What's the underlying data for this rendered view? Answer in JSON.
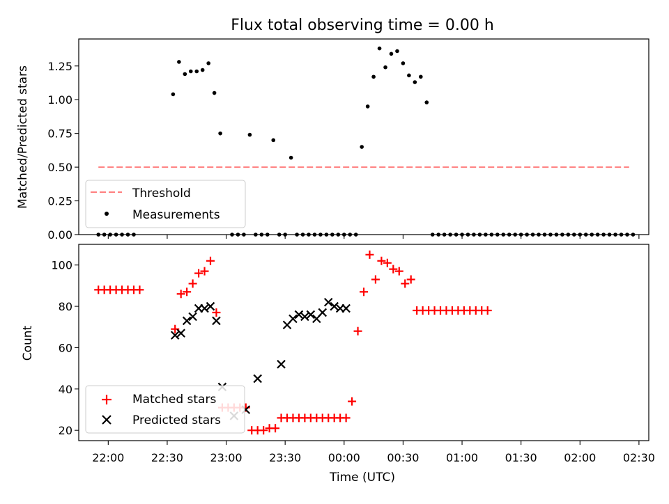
{
  "figure_title": "Flux total observing time = 0.00 h",
  "colors": {
    "threshold": "#ff7f7f",
    "measurement": "#000000",
    "matched": "#ff0000",
    "predicted": "#000000"
  },
  "chart_data": [
    {
      "type": "scatter",
      "title": "Flux total observing time = 0.00 h",
      "ylabel": "Matched/Predicted stars",
      "xlabel": "",
      "xlim": [
        "21:45",
        "02:35"
      ],
      "ylim": [
        0.0,
        1.45
      ],
      "yticks": [
        0.0,
        0.25,
        0.5,
        0.75,
        1.0,
        1.25
      ],
      "ytick_labels": [
        "0.00",
        "0.25",
        "0.50",
        "0.75",
        "1.00",
        "1.25"
      ],
      "xticks": [
        "22:00",
        "22:30",
        "23:00",
        "23:30",
        "00:00",
        "00:30",
        "01:00",
        "01:30",
        "02:00",
        "02:30"
      ],
      "legend": {
        "position": "lower-left",
        "entries": [
          "Threshold",
          "Measurements"
        ]
      },
      "threshold": {
        "name": "Threshold",
        "y": 0.5,
        "x_range": [
          "21:55",
          "02:25"
        ]
      },
      "measurements": {
        "name": "Measurements",
        "x": [
          "21:55",
          "21:58",
          "22:01",
          "22:04",
          "22:07",
          "22:10",
          "22:13",
          "22:33",
          "22:36",
          "22:39",
          "22:42",
          "22:45",
          "22:48",
          "22:51",
          "22:54",
          "22:57",
          "23:00",
          "23:03",
          "23:06",
          "23:09",
          "23:12",
          "23:15",
          "23:18",
          "23:21",
          "23:24",
          "23:27",
          "23:30",
          "23:33",
          "23:36",
          "23:39",
          "23:42",
          "23:45",
          "23:48",
          "23:51",
          "23:54",
          "23:57",
          "24:00",
          "24:03",
          "24:06",
          "24:09",
          "24:12",
          "24:15",
          "24:18",
          "24:21",
          "24:24",
          "24:27",
          "24:30",
          "24:33",
          "24:36",
          "24:39",
          "24:42",
          "24:45",
          "24:48",
          "24:51",
          "24:54",
          "24:57",
          "25:00",
          "25:03",
          "25:06",
          "25:09",
          "25:12",
          "25:15",
          "25:18",
          "25:21",
          "25:24",
          "25:27",
          "25:30",
          "25:33",
          "25:36",
          "25:39",
          "25:42",
          "25:45",
          "25:48",
          "25:51",
          "25:54",
          "25:57",
          "26:00",
          "26:03",
          "26:06",
          "26:09",
          "26:12",
          "26:15",
          "26:18",
          "26:21",
          "26:24",
          "26:27"
        ],
        "y": [
          0,
          0,
          0,
          0,
          0,
          0,
          0,
          1.04,
          1.28,
          1.19,
          1.21,
          1.21,
          1.22,
          1.27,
          1.05,
          0.75,
          null,
          0,
          0,
          0,
          0.74,
          0,
          0,
          0,
          0.7,
          0,
          0,
          0.57,
          0,
          0,
          0,
          0,
          0,
          0,
          0,
          0,
          0,
          0,
          0,
          0.65,
          0.95,
          1.17,
          1.38,
          1.24,
          1.34,
          1.36,
          1.27,
          1.18,
          1.13,
          1.17,
          0.98,
          0,
          0,
          0,
          0,
          0,
          0,
          0,
          0,
          0,
          0,
          0,
          0,
          0,
          0,
          0,
          0,
          0,
          0,
          0,
          0,
          0,
          0,
          0,
          0,
          0,
          0,
          0,
          0,
          0,
          0,
          0,
          0,
          0,
          0,
          0
        ]
      }
    },
    {
      "type": "scatter",
      "title": "",
      "ylabel": "Count",
      "xlabel": "Time (UTC)",
      "xlim": [
        "21:45",
        "02:35"
      ],
      "ylim": [
        15,
        110
      ],
      "yticks": [
        20,
        40,
        60,
        80,
        100
      ],
      "ytick_labels": [
        "20",
        "40",
        "60",
        "80",
        "100"
      ],
      "xticks": [
        "22:00",
        "22:30",
        "23:00",
        "23:30",
        "00:00",
        "00:30",
        "01:00",
        "01:30",
        "02:00",
        "02:30"
      ],
      "legend": {
        "position": "lower-left",
        "entries": [
          "Matched stars",
          "Predicted stars"
        ]
      },
      "series": [
        {
          "name": "Matched stars",
          "marker": "+",
          "points": [
            [
              "21:55",
              88
            ],
            [
              "21:58",
              88
            ],
            [
              "22:01",
              88
            ],
            [
              "22:04",
              88
            ],
            [
              "22:07",
              88
            ],
            [
              "22:10",
              88
            ],
            [
              "22:13",
              88
            ],
            [
              "22:16",
              88
            ],
            [
              "22:34",
              69
            ],
            [
              "22:37",
              86
            ],
            [
              "22:40",
              87
            ],
            [
              "22:43",
              91
            ],
            [
              "22:46",
              96
            ],
            [
              "22:49",
              97
            ],
            [
              "22:52",
              102
            ],
            [
              "22:55",
              77
            ],
            [
              "22:58",
              31
            ],
            [
              "23:01",
              31
            ],
            [
              "23:04",
              31
            ],
            [
              "23:07",
              31
            ],
            [
              "23:10",
              31
            ],
            [
              "23:13",
              20
            ],
            [
              "23:16",
              20
            ],
            [
              "23:19",
              20
            ],
            [
              "23:22",
              21
            ],
            [
              "23:25",
              21
            ],
            [
              "23:28",
              26
            ],
            [
              "23:31",
              26
            ],
            [
              "23:34",
              26
            ],
            [
              "23:37",
              26
            ],
            [
              "23:40",
              26
            ],
            [
              "23:43",
              26
            ],
            [
              "23:46",
              26
            ],
            [
              "23:49",
              26
            ],
            [
              "23:52",
              26
            ],
            [
              "23:55",
              26
            ],
            [
              "23:58",
              26
            ],
            [
              "24:01",
              26
            ],
            [
              "24:04",
              34
            ],
            [
              "24:07",
              68
            ],
            [
              "24:10",
              87
            ],
            [
              "24:13",
              105
            ],
            [
              "24:16",
              93
            ],
            [
              "24:19",
              102
            ],
            [
              "24:22",
              101
            ],
            [
              "24:25",
              98
            ],
            [
              "24:28",
              97
            ],
            [
              "24:31",
              91
            ],
            [
              "24:34",
              93
            ],
            [
              "24:37",
              78
            ],
            [
              "24:40",
              78
            ],
            [
              "24:43",
              78
            ],
            [
              "24:46",
              78
            ],
            [
              "24:49",
              78
            ],
            [
              "24:52",
              78
            ],
            [
              "24:55",
              78
            ],
            [
              "24:58",
              78
            ],
            [
              "25:01",
              78
            ],
            [
              "25:04",
              78
            ],
            [
              "25:07",
              78
            ],
            [
              "25:10",
              78
            ],
            [
              "25:13",
              78
            ]
          ]
        },
        {
          "name": "Predicted stars",
          "marker": "x",
          "points": [
            [
              "22:34",
              66
            ],
            [
              "22:37",
              67
            ],
            [
              "22:40",
              73
            ],
            [
              "22:43",
              75
            ],
            [
              "22:46",
              79
            ],
            [
              "22:49",
              79
            ],
            [
              "22:52",
              80
            ],
            [
              "22:55",
              73
            ],
            [
              "22:58",
              41
            ],
            [
              "23:04",
              27
            ],
            [
              "23:10",
              30
            ],
            [
              "23:16",
              45
            ],
            [
              "23:28",
              52
            ],
            [
              "23:31",
              71
            ],
            [
              "23:34",
              74
            ],
            [
              "23:37",
              76
            ],
            [
              "23:40",
              75
            ],
            [
              "23:43",
              76
            ],
            [
              "23:46",
              74
            ],
            [
              "23:49",
              77
            ],
            [
              "23:52",
              82
            ],
            [
              "23:55",
              80
            ],
            [
              "23:58",
              79
            ],
            [
              "24:01",
              79
            ]
          ]
        }
      ]
    }
  ]
}
